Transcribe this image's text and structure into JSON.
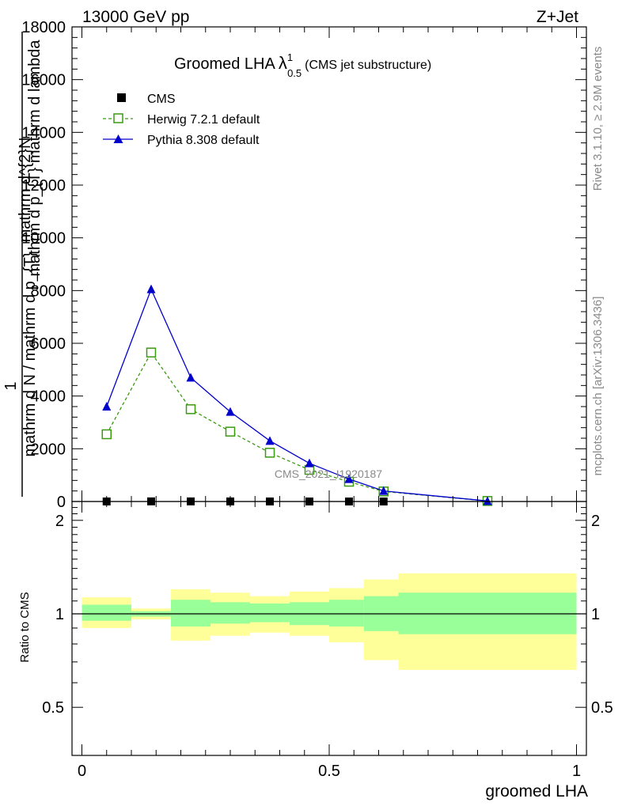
{
  "header": {
    "energy": "13000 GeV pp",
    "process": "Z+Jet"
  },
  "side": {
    "rivet": "Rivet 3.1.10, ≥ 2.9M events",
    "mcplots": "mcplots.cern.ch [arXiv:1306.3436]"
  },
  "chart_data": [
    {
      "type": "line",
      "panel": "main",
      "title": "Groomed LHA",
      "title_symbol": "λ",
      "title_superscript": "1",
      "title_subscript": "0.5",
      "subtitle": "(CMS jet substructure)",
      "ylabel_numerator": "mathrm d^{2}N",
      "ylabel_denominator_top": "mathrm d p_{T} mathrm d lambda",
      "ylabel_prefix": "1",
      "ylabel_prefix_denominator": "mathrm d N / mathrm d p_{T}",
      "ylim": [
        0,
        18000
      ],
      "xlim": [
        -0.02,
        1.02
      ],
      "yticks": [
        0,
        2000,
        4000,
        6000,
        8000,
        10000,
        12000,
        14000,
        16000,
        18000
      ],
      "ytick_labels": [
        "0",
        "2000",
        "4000",
        "6000",
        "8000",
        "10000",
        "12000",
        "14000",
        "16000",
        "18000"
      ],
      "annotation": "CMS_2021_I1920187",
      "legend_position": "top-left",
      "series": [
        {
          "name": "CMS",
          "marker": "square-filled",
          "color": "#000000",
          "x": [
            0.05,
            0.14,
            0.22,
            0.3,
            0.38,
            0.46,
            0.54,
            0.61,
            0.82
          ],
          "values": [
            2,
            5,
            4,
            3,
            2,
            1,
            1,
            0.5,
            0.1
          ]
        },
        {
          "name": "Herwig 7.2.1 default",
          "marker": "square-open",
          "line": "dashed",
          "color": "#3a9a10",
          "x": [
            0.05,
            0.14,
            0.22,
            0.3,
            0.38,
            0.46,
            0.54,
            0.61,
            0.82
          ],
          "values": [
            2550,
            5650,
            3500,
            2650,
            1850,
            1200,
            750,
            380,
            20
          ]
        },
        {
          "name": "Pythia 8.308 default",
          "marker": "triangle-filled",
          "line": "solid",
          "color": "#0000cc",
          "x": [
            0.05,
            0.14,
            0.22,
            0.3,
            0.38,
            0.46,
            0.54,
            0.61,
            0.82
          ],
          "values": [
            3600,
            8050,
            4700,
            3400,
            2300,
            1450,
            850,
            400,
            20
          ]
        }
      ]
    },
    {
      "type": "area",
      "panel": "ratio",
      "ylabel": "Ratio to CMS",
      "xlabel": "groomed LHA",
      "ylim": [
        0.35,
        2.3
      ],
      "yticks": [
        0.5,
        1,
        2
      ],
      "ytick_labels": [
        "0.5",
        "1",
        "2"
      ],
      "xticks": [
        0,
        0.5,
        1
      ],
      "xtick_labels": [
        "0",
        "0.5",
        "1"
      ],
      "reference_line": 1,
      "band_colors": {
        "inner": "#99ff99",
        "outer": "#ffff99"
      },
      "bins": [
        {
          "xlo": 0.0,
          "xhi": 0.1,
          "inner": [
            0.95,
            1.07
          ],
          "outer": [
            0.9,
            1.13
          ]
        },
        {
          "xlo": 0.1,
          "xhi": 0.18,
          "inner": [
            0.98,
            1.02
          ],
          "outer": [
            0.96,
            1.04
          ]
        },
        {
          "xlo": 0.18,
          "xhi": 0.26,
          "inner": [
            0.91,
            1.11
          ],
          "outer": [
            0.82,
            1.2
          ]
        },
        {
          "xlo": 0.26,
          "xhi": 0.34,
          "inner": [
            0.93,
            1.09
          ],
          "outer": [
            0.85,
            1.17
          ]
        },
        {
          "xlo": 0.34,
          "xhi": 0.42,
          "inner": [
            0.94,
            1.08
          ],
          "outer": [
            0.87,
            1.14
          ]
        },
        {
          "xlo": 0.42,
          "xhi": 0.5,
          "inner": [
            0.92,
            1.09
          ],
          "outer": [
            0.85,
            1.18
          ]
        },
        {
          "xlo": 0.5,
          "xhi": 0.57,
          "inner": [
            0.91,
            1.11
          ],
          "outer": [
            0.81,
            1.21
          ]
        },
        {
          "xlo": 0.57,
          "xhi": 0.64,
          "inner": [
            0.88,
            1.14
          ],
          "outer": [
            0.71,
            1.29
          ]
        },
        {
          "xlo": 0.64,
          "xhi": 1.0,
          "inner": [
            0.86,
            1.17
          ],
          "outer": [
            0.66,
            1.35
          ]
        }
      ]
    }
  ]
}
